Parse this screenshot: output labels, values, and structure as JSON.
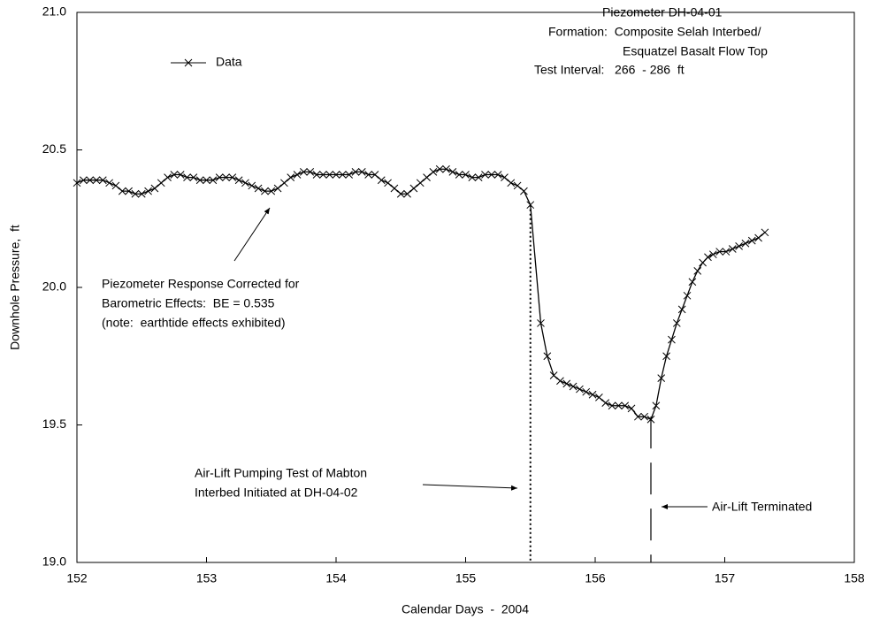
{
  "chart_data": {
    "type": "line",
    "xlabel": "Calendar Days  -  2004",
    "ylabel": "Downhole Pressure,  ft",
    "xlim": [
      152,
      158
    ],
    "xticks": [
      152,
      153,
      154,
      155,
      156,
      157,
      158
    ],
    "ylim": [
      19,
      21
    ],
    "yticks": [
      {
        "value": 19,
        "label": "19.0"
      },
      19.5,
      {
        "value": 20,
        "label": "20.0"
      },
      20.5,
      {
        "value": 21,
        "label": "21.0"
      }
    ],
    "series": [
      {
        "name": "Data",
        "color": "#000000",
        "x": [
          152.0,
          152.05,
          152.1,
          152.15,
          152.2,
          152.25,
          152.3,
          152.35,
          152.4,
          152.45,
          152.5,
          152.55,
          152.6,
          152.65,
          152.7,
          152.75,
          152.8,
          152.85,
          152.9,
          152.95,
          153.0,
          153.05,
          153.1,
          153.15,
          153.2,
          153.25,
          153.3,
          153.35,
          153.4,
          153.45,
          153.5,
          153.55,
          153.6,
          153.65,
          153.7,
          153.75,
          153.8,
          153.85,
          153.9,
          153.95,
          154.0,
          154.05,
          154.1,
          154.15,
          154.2,
          154.25,
          154.3,
          154.35,
          154.4,
          154.45,
          154.5,
          154.55,
          154.6,
          154.65,
          154.7,
          154.75,
          154.8,
          154.85,
          154.9,
          154.95,
          155.0,
          155.05,
          155.1,
          155.15,
          155.2,
          155.25,
          155.3,
          155.35,
          155.4,
          155.45,
          155.5,
          155.58,
          155.63,
          155.68,
          155.73,
          155.78,
          155.83,
          155.88,
          155.93,
          155.98,
          156.03,
          156.08,
          156.13,
          156.18,
          156.23,
          156.28,
          156.33,
          156.38,
          156.43,
          156.47,
          156.51,
          156.55,
          156.59,
          156.63,
          156.67,
          156.71,
          156.75,
          156.79,
          156.83,
          156.87,
          156.91,
          156.96,
          157.01,
          157.06,
          157.11,
          157.16,
          157.21,
          157.26,
          157.31
        ],
        "values": [
          20.38,
          20.39,
          20.39,
          20.39,
          20.39,
          20.38,
          20.37,
          20.35,
          20.35,
          20.34,
          20.34,
          20.35,
          20.36,
          20.38,
          20.4,
          20.41,
          20.41,
          20.4,
          20.4,
          20.39,
          20.39,
          20.39,
          20.4,
          20.4,
          20.4,
          20.39,
          20.38,
          20.37,
          20.36,
          20.35,
          20.35,
          20.36,
          20.38,
          20.4,
          20.41,
          20.42,
          20.42,
          20.41,
          20.41,
          20.41,
          20.41,
          20.41,
          20.41,
          20.42,
          20.42,
          20.41,
          20.41,
          20.39,
          20.38,
          20.36,
          20.34,
          20.34,
          20.36,
          20.38,
          20.4,
          20.42,
          20.43,
          20.43,
          20.42,
          20.41,
          20.41,
          20.4,
          20.4,
          20.41,
          20.41,
          20.41,
          20.4,
          20.38,
          20.37,
          20.35,
          20.3,
          19.87,
          19.75,
          19.68,
          19.66,
          19.65,
          19.64,
          19.63,
          19.62,
          19.61,
          19.6,
          19.58,
          19.57,
          19.57,
          19.57,
          19.56,
          19.53,
          19.53,
          19.52,
          19.57,
          19.67,
          19.75,
          19.81,
          19.87,
          19.92,
          19.97,
          20.02,
          20.06,
          20.09,
          20.11,
          20.12,
          20.13,
          20.13,
          20.14,
          20.15,
          20.16,
          20.17,
          20.18,
          20.2
        ]
      }
    ],
    "vlines": [
      {
        "x": 155.5,
        "style": "dotted"
      },
      {
        "x": 156.43,
        "style": "dashed"
      }
    ],
    "annotations": [
      "Piezometer DH-04-01",
      "Formation:  Composite Selah Interbed/",
      "Esquatzel Basalt Flow Top",
      "Test Interval:   266  - 286  ft",
      "Piezometer Response Corrected for",
      "Barometric Effects:  BE = 0.535",
      "(note:  earthtide effects exhibited)",
      "Air-Lift Pumping Test of Mabton",
      "Interbed Initiated at DH-04-02",
      "Air-Lift Terminated"
    ]
  }
}
